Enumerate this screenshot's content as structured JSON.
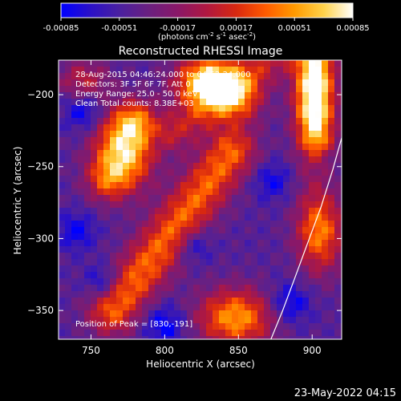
{
  "colorbar": {
    "ticks": [
      "-0.00085",
      "-0.00051",
      "-0.00017",
      "0.00017",
      "0.00051",
      "0.00085"
    ],
    "tick_values": [
      -0.00085,
      -0.00051,
      -0.00017,
      0.00017,
      0.00051,
      0.00085
    ],
    "range": [
      -0.00085,
      0.00085
    ],
    "units_parts": [
      "(photons cm",
      "-2",
      " s",
      "-1",
      " asec",
      "-2",
      ")"
    ],
    "colormap": [
      "#0000ff",
      "#2a10c8",
      "#4a20a0",
      "#6a2080",
      "#8a1868",
      "#b01840",
      "#d82810",
      "#ff5a00",
      "#ff9a00",
      "#ffd24a",
      "#ffffff"
    ]
  },
  "chart_data": {
    "type": "heatmap",
    "title": "Reconstructed RHESSI Image",
    "xlabel": "Heliocentric X (arcsec)",
    "ylabel": "Heliocentric Y (arcsec)",
    "xlim": [
      728,
      920
    ],
    "ylim": [
      -370,
      -176
    ],
    "xticks": [
      750,
      800,
      850,
      900
    ],
    "yticks": [
      -200,
      -250,
      -300,
      -350
    ],
    "info_lines": [
      "28-Aug-2015 04:46:24.000 to 04:52:24.000",
      "Detectors: 3F 5F 6F 7F, Att 0",
      "Energy Range: 25.0 - 50.0 keV",
      "Clean     Total counts: 8.38E+03"
    ],
    "peak_label": "Position of Peak = [830,-191]",
    "limb_curve": [
      [
        872,
        -370
      ],
      [
        880,
        -350
      ],
      [
        888,
        -328
      ],
      [
        897,
        -303
      ],
      [
        906,
        -278
      ],
      [
        914,
        -252
      ],
      [
        920,
        -230
      ]
    ],
    "sources": [
      {
        "x": 745,
        "y": -190,
        "sx": 12,
        "sy": 10,
        "a": 0.0003
      },
      {
        "x": 772,
        "y": -240,
        "sx": 14,
        "sy": 18,
        "a": 0.00075
      },
      {
        "x": 780,
        "y": -218,
        "sx": 10,
        "sy": 10,
        "a": 0.0004
      },
      {
        "x": 830,
        "y": -191,
        "sx": 15,
        "sy": 12,
        "a": 0.00085
      },
      {
        "x": 850,
        "y": -205,
        "sx": 12,
        "sy": 12,
        "a": 0.00035
      },
      {
        "x": 900,
        "y": -200,
        "sx": 9,
        "sy": 30,
        "a": 0.0007
      },
      {
        "x": 905,
        "y": -295,
        "sx": 11,
        "sy": 20,
        "a": 0.00055
      },
      {
        "x": 848,
        "y": -355,
        "sx": 18,
        "sy": 14,
        "a": 0.0006
      },
      {
        "x": 760,
        "y": -260,
        "sx": 10,
        "sy": 10,
        "a": 0.0003
      }
    ],
    "ridges": [
      {
        "x0": 765,
        "y0": -350,
        "x1": 845,
        "y1": -240,
        "w": 12,
        "a": 0.0005
      },
      {
        "x0": 808,
        "y0": -225,
        "x1": 880,
        "y1": -170,
        "w": 10,
        "a": 0.0003
      },
      {
        "x0": 905,
        "y0": -175,
        "x1": 905,
        "y1": -230,
        "w": 8,
        "a": 0.0003
      }
    ],
    "negative_spots": [
      {
        "x": 800,
        "y": -360,
        "sx": 10,
        "sy": 10,
        "a": -0.00085
      },
      {
        "x": 745,
        "y": -212,
        "sx": 9,
        "sy": 9,
        "a": -0.0008
      },
      {
        "x": 740,
        "y": -295,
        "sx": 9,
        "sy": 9,
        "a": -0.00075
      },
      {
        "x": 758,
        "y": -330,
        "sx": 8,
        "sy": 8,
        "a": -0.0008
      },
      {
        "x": 885,
        "y": -345,
        "sx": 10,
        "sy": 10,
        "a": -0.00085
      },
      {
        "x": 873,
        "y": -260,
        "sx": 9,
        "sy": 9,
        "a": -0.0007
      },
      {
        "x": 820,
        "y": -305,
        "sx": 8,
        "sy": 8,
        "a": -0.0007
      }
    ],
    "background": -0.00045
  },
  "footer": {
    "timestamp": "23-May-2022 04:15"
  }
}
